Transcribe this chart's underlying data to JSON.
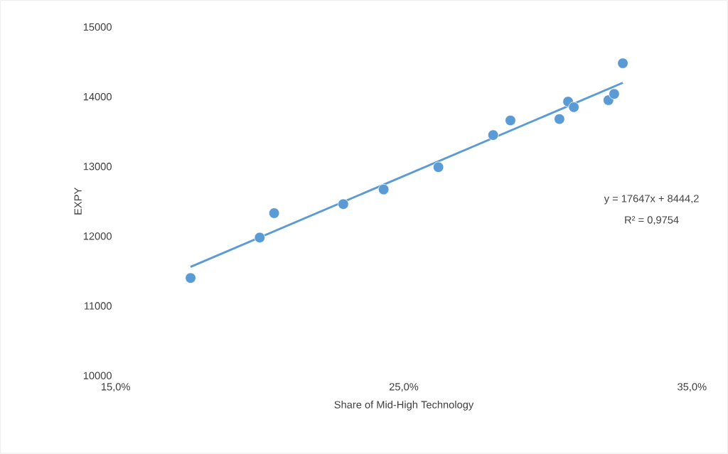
{
  "chart_data": {
    "type": "scatter",
    "xlabel": "Share of Mid-High Technology",
    "ylabel": "EXPY",
    "xlim": [
      15,
      35
    ],
    "xticks": [
      {
        "value": 15,
        "label": "15,0%"
      },
      {
        "value": 25,
        "label": "25,0%"
      },
      {
        "value": 35,
        "label": "35,0%"
      }
    ],
    "ylim": [
      10000,
      15000
    ],
    "yticks": [
      10000,
      11000,
      12000,
      13000,
      14000,
      15000
    ],
    "series": [
      {
        "color": "#5b9bd5",
        "marker": "circle",
        "x": [
          17.6,
          20.0,
          20.5,
          22.9,
          24.3,
          26.2,
          28.1,
          28.7,
          30.4,
          30.7,
          30.9,
          32.1,
          32.3,
          32.6
        ],
        "values": [
          11400,
          11980,
          12330,
          12460,
          12670,
          12990,
          13450,
          13660,
          13680,
          13930,
          13850,
          13950,
          14040,
          14480
        ]
      },
      {
        "type": "line",
        "color": "#5b9bd5",
        "marker": "none",
        "x": [
          17.6,
          32.6
        ],
        "values": [
          11560,
          14200
        ]
      }
    ],
    "annotations": [
      "y = 17647x + 8444,2",
      "R² = 0,9754"
    ]
  }
}
